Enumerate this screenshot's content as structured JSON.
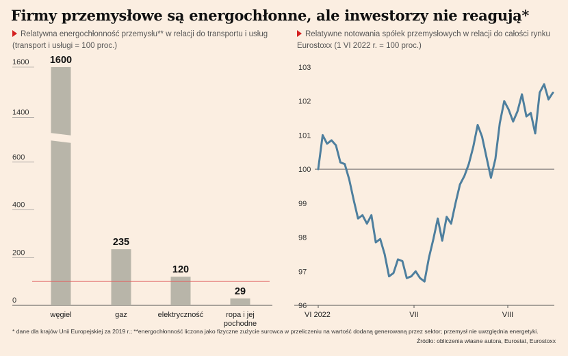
{
  "title": "Firmy przemysłowe są energochłonne, ale inwestorzy nie reagują*",
  "footnote": "* dane dla krajów Unii Europejskiej za 2019 r.; **energochłonność liczona jako fizyczne zużycie surowca w przeliczeniu na wartość dodaną generowaną przez sektor; przemysł nie uwzględnia energetyki.",
  "source": "Źródło: obliczenia własne autora, Eurostat, Eurostoxx",
  "colors": {
    "bar": "#b8b5a9",
    "line": "#4e7f9e",
    "reference_red": "#e06060",
    "baseline_gray": "#666666",
    "background": "#fbeee1"
  },
  "chart_data": [
    {
      "type": "bar",
      "subtitle": "Relatywna energochłonność przemysłu** w relacji do transportu i usług (transport i usługi = 100 proc.)",
      "categories": [
        "węgiel",
        "gaz",
        "elektryczność",
        "ropa i jej pochodne"
      ],
      "values": [
        1600,
        235,
        120,
        29
      ],
      "value_labels": [
        "1600",
        "235",
        "120",
        "29"
      ],
      "yticks": [
        "0",
        "200",
        "400",
        "600",
        "1400",
        "1600"
      ],
      "axis_break": [
        700,
        1330
      ],
      "reference_line": 100,
      "ylim": [
        0,
        1600
      ],
      "grid": false
    },
    {
      "type": "line",
      "subtitle": "Relatywne notowania spółek przemysłowych w relacji do całości rynku Eurostoxx (1 VI 2022 r. = 100 proc.)",
      "xticks": [
        "VI 2022",
        "VII",
        "VIII"
      ],
      "yticks": [
        96,
        97,
        98,
        99,
        100,
        101,
        102,
        103
      ],
      "ylim": [
        96,
        103
      ],
      "reference_line": 100,
      "grid": false,
      "series": [
        {
          "values": [
            100.0,
            101.0,
            100.75,
            100.85,
            100.7,
            100.2,
            100.15,
            99.7,
            99.1,
            98.55,
            98.65,
            98.4,
            98.65,
            97.85,
            97.95,
            97.5,
            96.85,
            96.95,
            97.35,
            97.3,
            96.8,
            96.85,
            97.0,
            96.8,
            96.7,
            97.4,
            97.95,
            98.55,
            97.9,
            98.6,
            98.4,
            99.0,
            99.55,
            99.8,
            100.15,
            100.65,
            101.3,
            100.95,
            100.35,
            99.75,
            100.3,
            101.35,
            102.0,
            101.75,
            101.4,
            101.7,
            102.2,
            101.55,
            101.65,
            101.05,
            102.25,
            102.5,
            102.05,
            102.25
          ]
        }
      ]
    }
  ]
}
